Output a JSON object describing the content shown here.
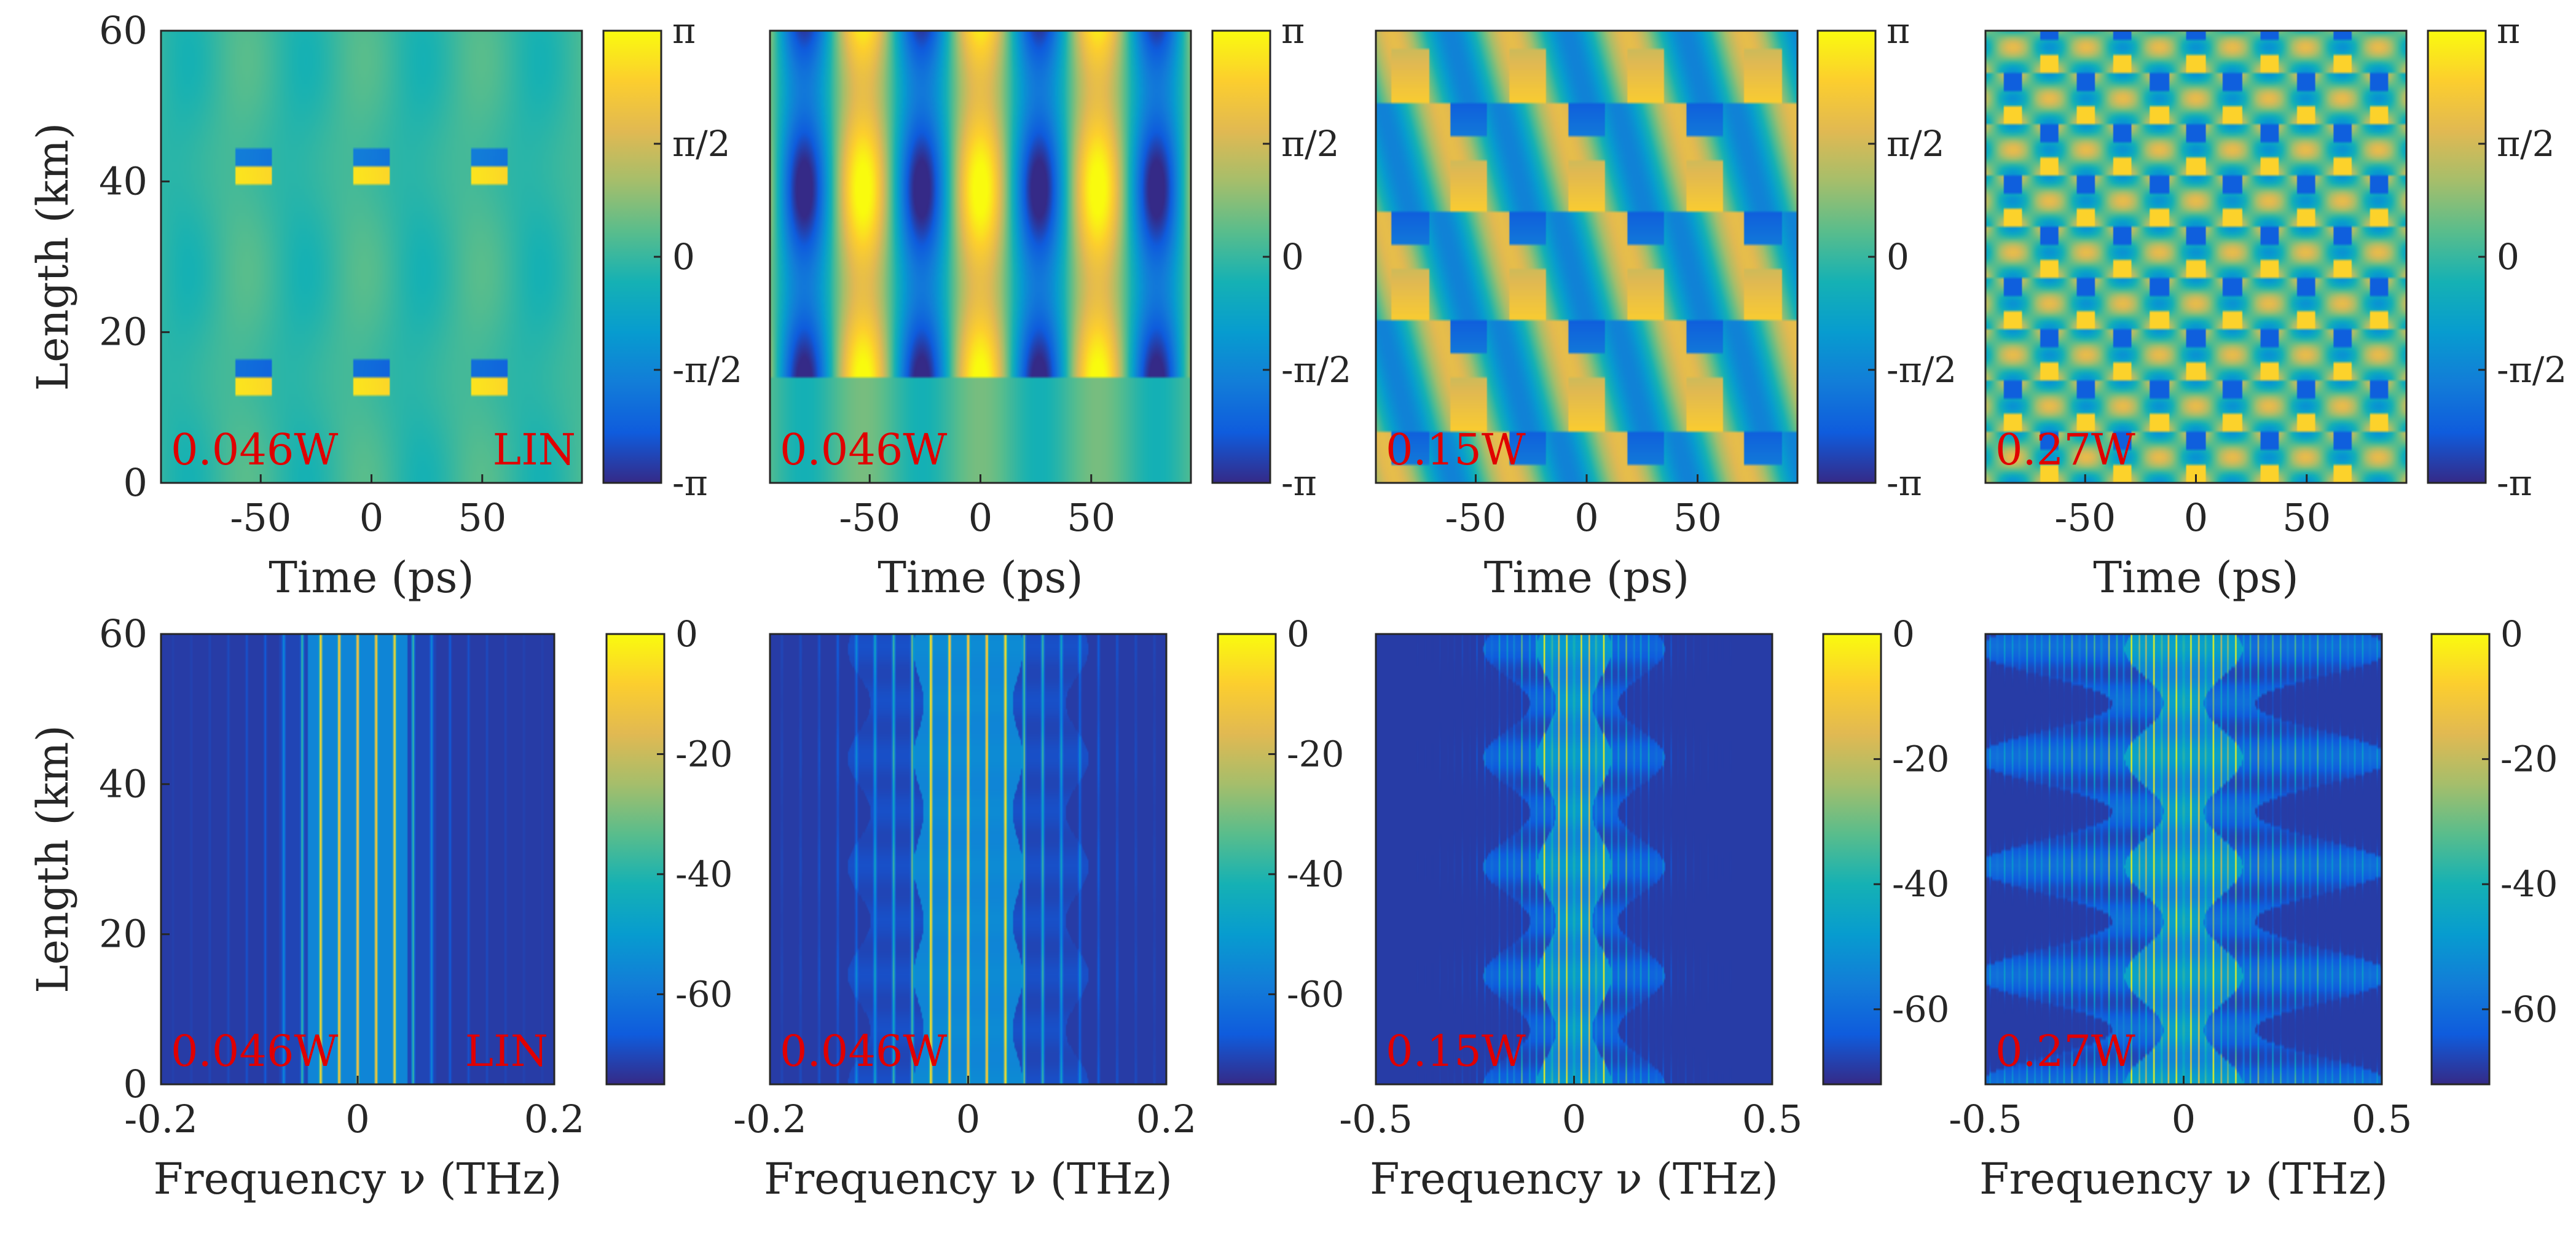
{
  "chart_data": [
    {
      "type": "heatmap",
      "row": 0,
      "col": 0,
      "quantity": "phase",
      "annotation_left": "0.046W",
      "annotation_right": "LIN",
      "xlabel": "Time (ps)",
      "ylabel": "Length (km)",
      "xlim": [
        -95,
        95
      ],
      "ylim": [
        0,
        60
      ],
      "xticks": [
        -50,
        0,
        50
      ],
      "yticks": [
        0,
        20,
        40,
        60
      ],
      "colorbar": {
        "ticks": [
          "π",
          "π/2",
          "0",
          "-π/2",
          "-π"
        ],
        "range": [
          -3.1416,
          3.1416
        ]
      },
      "pattern": {
        "period_ps": 53,
        "jump_km": [
          14,
          42
        ],
        "style": "phase-lin"
      }
    },
    {
      "type": "heatmap",
      "row": 0,
      "col": 1,
      "quantity": "phase",
      "annotation_left": "0.046W",
      "annotation_right": "",
      "xlabel": "Time (ps)",
      "ylabel": "",
      "xlim": [
        -95,
        95
      ],
      "ylim": [
        0,
        60
      ],
      "xticks": [
        -50,
        0,
        50
      ],
      "yticks": [],
      "colorbar": {
        "ticks": [
          "π",
          "π/2",
          "0",
          "-π/2",
          "-π"
        ],
        "range": [
          -3.1416,
          3.1416
        ]
      },
      "pattern": {
        "period_ps": 53,
        "jump_km": [
          15
        ],
        "style": "phase-strong"
      }
    },
    {
      "type": "heatmap",
      "row": 0,
      "col": 2,
      "quantity": "phase",
      "annotation_left": "0.15W",
      "annotation_right": "",
      "xlabel": "Time (ps)",
      "ylabel": "",
      "xlim": [
        -95,
        95
      ],
      "ylim": [
        0,
        60
      ],
      "xticks": [
        -50,
        0,
        50
      ],
      "yticks": [],
      "colorbar": {
        "ticks": [
          "π",
          "π/2",
          "0",
          "-π/2",
          "-π"
        ],
        "range": [
          -3.1416,
          3.1416
        ]
      },
      "pattern": {
        "period_ps": 53,
        "jump_km": [
          7,
          21,
          36,
          51
        ],
        "style": "phase-arc"
      }
    },
    {
      "type": "heatmap",
      "row": 0,
      "col": 3,
      "quantity": "phase",
      "annotation_left": "0.27W",
      "annotation_right": "",
      "xlabel": "Time (ps)",
      "ylabel": "",
      "xlim": [
        -95,
        95
      ],
      "ylim": [
        0,
        60
      ],
      "xticks": [
        -50,
        0,
        50
      ],
      "yticks": [],
      "colorbar": {
        "ticks": [
          "π",
          "π/2",
          "0",
          "-π/2",
          "-π"
        ],
        "range": [
          -3.1416,
          3.1416
        ]
      },
      "pattern": {
        "period_ps": 33,
        "jump_km": [
          6,
          12,
          19,
          26,
          33,
          40,
          46,
          53,
          60
        ],
        "style": "phase-dots"
      }
    },
    {
      "type": "heatmap",
      "row": 1,
      "col": 0,
      "quantity": "spectrum (dB)",
      "annotation_left": "0.046W",
      "annotation_right": "LIN",
      "xlabel": "Frequency ν (THz)",
      "ylabel": "Length (km)",
      "xlim": [
        -0.2,
        0.2
      ],
      "ylim": [
        0,
        60
      ],
      "xticks": [
        -0.2,
        0,
        0.2
      ],
      "yticks": [
        0,
        20,
        40,
        60
      ],
      "colorbar": {
        "ticks": [
          "0",
          "-20",
          "-40",
          "-60"
        ],
        "range": [
          -75,
          0
        ]
      },
      "pattern": {
        "line_spacing_THz": 0.0188,
        "bright_half_width_THz": 0.05,
        "faint_half_width_THz": 0.08,
        "breathing": 0
      }
    },
    {
      "type": "heatmap",
      "row": 1,
      "col": 1,
      "quantity": "spectrum (dB)",
      "annotation_left": "0.046W",
      "annotation_right": "",
      "xlabel": "Frequency ν (THz)",
      "ylabel": "",
      "xlim": [
        -0.2,
        0.2
      ],
      "ylim": [
        0,
        60
      ],
      "xticks": [
        -0.2,
        0,
        0.2
      ],
      "yticks": [],
      "colorbar": {
        "ticks": [
          "0",
          "-20",
          "-40",
          "-60"
        ],
        "range": [
          -75,
          0
        ]
      },
      "pattern": {
        "line_spacing_THz": 0.0188,
        "bright_half_width_THz": 0.05,
        "faint_half_width_THz": 0.11,
        "breathing": 0.3
      }
    },
    {
      "type": "heatmap",
      "row": 1,
      "col": 2,
      "quantity": "spectrum (dB)",
      "annotation_left": "0.15W",
      "annotation_right": "",
      "xlabel": "Frequency ν (THz)",
      "ylabel": "",
      "xlim": [
        -0.5,
        0.5
      ],
      "ylim": [
        0,
        60
      ],
      "xticks": [
        -0.5,
        0,
        0.5
      ],
      "yticks": [],
      "colorbar": {
        "ticks": [
          "0",
          "-20",
          "-40",
          "-60"
        ],
        "range": [
          -72,
          0
        ]
      },
      "pattern": {
        "line_spacing_THz": 0.0188,
        "bright_half_width_THz": 0.07,
        "faint_half_width_THz": 0.17,
        "breathing": 1
      }
    },
    {
      "type": "heatmap",
      "row": 1,
      "col": 3,
      "quantity": "spectrum (dB)",
      "annotation_left": "0.27W",
      "annotation_right": "",
      "xlabel": "Frequency ν (THz)",
      "ylabel": "",
      "xlim": [
        -0.5,
        0.5
      ],
      "ylim": [
        0,
        60
      ],
      "xticks": [
        -0.5,
        0,
        0.5
      ],
      "yticks": [],
      "colorbar": {
        "ticks": [
          "0",
          "-20",
          "-40",
          "-60"
        ],
        "range": [
          -72,
          0
        ]
      },
      "pattern": {
        "line_spacing_THz": 0.0188,
        "bright_half_width_THz": 0.1,
        "faint_half_width_THz": 0.35,
        "breathing": 1.4
      }
    }
  ]
}
